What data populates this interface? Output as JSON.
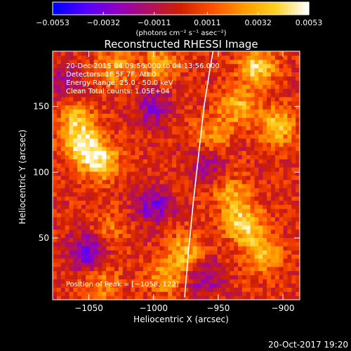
{
  "chart_data": {
    "type": "heatmap",
    "title": "Reconstructed RHESSI Image",
    "xlabel": "Heliocentric X (arcsec)",
    "ylabel": "Heliocentric Y (arcsec)",
    "xlim": [
      -1078,
      -887
    ],
    "ylim": [
      3,
      192
    ],
    "x_ticks": [
      -1050,
      -1000,
      -950,
      -900
    ],
    "y_ticks": [
      50,
      100,
      150
    ],
    "x_tick_labels": [
      "−1050",
      "−1000",
      "−950",
      "−900"
    ],
    "y_tick_labels": [
      "50",
      "100",
      "150"
    ],
    "colorbar": {
      "range": [
        -0.0053,
        0.0053
      ],
      "ticks": [
        -0.0053,
        -0.0032,
        -0.0011,
        0.0011,
        0.0032,
        0.0053
      ],
      "tick_labels": [
        "−0.0053",
        "−0.0032",
        "−0.0011",
        "0.0011",
        "0.0032",
        "0.0053"
      ],
      "unit_label": "(photons cm⁻² s⁻¹ asec⁻²)",
      "colors": [
        "#0000ff",
        "#5500ff",
        "#9000c0",
        "#b01060",
        "#d02000",
        "#ff5000",
        "#ff9a00",
        "#ffd020",
        "#ffffff"
      ]
    },
    "limb_x": [
      -976,
      -973,
      -969,
      -965,
      -961,
      -957,
      -954
    ],
    "limb_y": [
      5,
      40,
      80,
      115,
      150,
      175,
      192
    ],
    "annotations": [
      "20-Dec-2015 04:09:56.000 to 04:13:56.000",
      "Detectors: 1F 5F 7F, Att 0",
      "Energy Range: 25.0 - 50.0 keV",
      "Clean    Total counts: 1.05E+04"
    ],
    "peak_label": "Position of Peak = [−1058, 122]",
    "bright_regions": [
      {
        "x": -1055,
        "y": 120,
        "intensity": 1.0
      },
      {
        "x": -1040,
        "y": 108,
        "intensity": 0.9
      },
      {
        "x": -1060,
        "y": 140,
        "intensity": 0.7
      },
      {
        "x": -1030,
        "y": 180,
        "intensity": 0.6
      },
      {
        "x": -995,
        "y": 182,
        "intensity": 0.6
      },
      {
        "x": -920,
        "y": 180,
        "intensity": 0.9
      },
      {
        "x": -935,
        "y": 150,
        "intensity": 0.7
      },
      {
        "x": -905,
        "y": 135,
        "intensity": 0.8
      },
      {
        "x": -955,
        "y": 130,
        "intensity": 0.5
      },
      {
        "x": -940,
        "y": 82,
        "intensity": 0.6
      },
      {
        "x": -930,
        "y": 60,
        "intensity": 0.9
      },
      {
        "x": -915,
        "y": 38,
        "intensity": 0.8
      },
      {
        "x": -975,
        "y": 40,
        "intensity": 0.7
      },
      {
        "x": -990,
        "y": 22,
        "intensity": 0.6
      },
      {
        "x": -1040,
        "y": 15,
        "intensity": 0.5
      },
      {
        "x": -1035,
        "y": 55,
        "intensity": 0.4
      }
    ],
    "dim_regions": [
      {
        "x": -1050,
        "y": 40,
        "intensity": -0.9
      },
      {
        "x": -1000,
        "y": 150,
        "intensity": -0.6
      },
      {
        "x": -1000,
        "y": 75,
        "intensity": -0.7
      },
      {
        "x": -960,
        "y": 20,
        "intensity": -0.6
      },
      {
        "x": -960,
        "y": 105,
        "intensity": -0.5
      },
      {
        "x": -1070,
        "y": 170,
        "intensity": -0.4
      }
    ]
  },
  "footer": {
    "timestamp": "20-Oct-2017 19:20"
  }
}
